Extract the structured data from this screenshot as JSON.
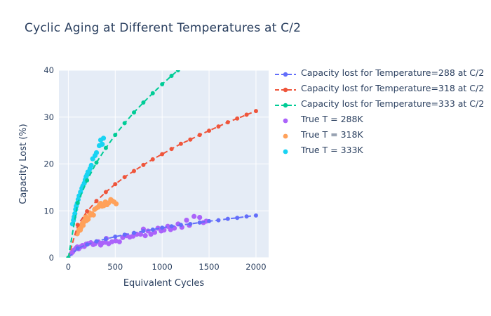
{
  "title": "Cyclic Aging at Different Temperatures at C/2",
  "colors": {
    "title_text": "#2a3f5f",
    "axis_text": "#2a3f5f",
    "plot_bg": "#e5ecf6",
    "grid": "#ffffff",
    "paper_bg": "#ffffff",
    "fit_288": "#636efa",
    "fit_318": "#ef553b",
    "fit_333": "#00cc96",
    "true_288": "#ab63fa",
    "true_318": "#ffa15a",
    "true_333": "#19d3f3"
  },
  "legend": {
    "items": [
      {
        "label": "Capacity lost for Temperature=288 at C/2",
        "type": "line",
        "color": "#636efa"
      },
      {
        "label": "Capacity lost for Temperature=318 at C/2",
        "type": "line",
        "color": "#ef553b"
      },
      {
        "label": "Capacity lost for Temperature=333 at C/2",
        "type": "line",
        "color": "#00cc96"
      },
      {
        "label": "True T = 288K",
        "type": "marker",
        "color": "#ab63fa"
      },
      {
        "label": "True T = 318K",
        "type": "marker",
        "color": "#ffa15a"
      },
      {
        "label": "True T = 333K",
        "type": "marker",
        "color": "#19d3f3"
      }
    ]
  },
  "chart_data": {
    "type": "scatter",
    "title": "Cyclic Aging at Different Temperatures at C/2",
    "xlabel": "Equivalent Cycles",
    "ylabel": "Capacity Lost (%)",
    "xlim": [
      -100,
      2135
    ],
    "ylim": [
      0,
      40
    ],
    "xticks": [
      0,
      500,
      1000,
      1500,
      2000
    ],
    "yticks": [
      0,
      10,
      20,
      30,
      40
    ],
    "grid": true,
    "legend_position": "right-top",
    "series": [
      {
        "name": "Capacity lost for Temperature=288 at C/2",
        "mode": "lines+markers",
        "dashed": true,
        "color": "#636efa",
        "x": [
          0,
          100,
          200,
          300,
          400,
          500,
          600,
          700,
          800,
          900,
          1000,
          1100,
          1200,
          1300,
          1400,
          1500,
          1600,
          1700,
          1800,
          1900,
          2000
        ],
        "y": [
          0,
          2.0,
          2.8,
          3.5,
          4.0,
          4.5,
          4.9,
          5.3,
          5.7,
          6.0,
          6.4,
          6.7,
          7.0,
          7.2,
          7.5,
          7.8,
          8.0,
          8.3,
          8.5,
          8.8,
          9.0
        ]
      },
      {
        "name": "Capacity lost for Temperature=318 at C/2",
        "mode": "lines+markers",
        "dashed": true,
        "color": "#ef553b",
        "x": [
          0,
          100,
          200,
          300,
          400,
          500,
          600,
          700,
          800,
          900,
          1000,
          1100,
          1200,
          1300,
          1400,
          1500,
          1600,
          1700,
          1800,
          1900,
          2000
        ],
        "y": [
          0,
          7.0,
          9.9,
          12.1,
          14.0,
          15.7,
          17.2,
          18.5,
          19.8,
          21.0,
          22.1,
          23.2,
          24.3,
          25.2,
          26.2,
          27.1,
          28.0,
          28.9,
          29.7,
          30.5,
          31.3
        ]
      },
      {
        "name": "Capacity lost for Temperature=333 at C/2",
        "mode": "lines+markers",
        "dashed": true,
        "color": "#00cc96",
        "x": [
          0,
          100,
          200,
          300,
          400,
          500,
          600,
          700,
          800,
          900,
          1000,
          1100,
          1169
        ],
        "y": [
          0,
          11.7,
          16.5,
          20.3,
          23.4,
          26.2,
          28.7,
          31.0,
          33.1,
          35.1,
          37.0,
          38.8,
          40.0
        ]
      },
      {
        "name": "True T = 288K",
        "mode": "markers",
        "color": "#ab63fa",
        "x": [
          30,
          45,
          60,
          80,
          95,
          110,
          130,
          150,
          170,
          190,
          210,
          240,
          265,
          285,
          320,
          345,
          360,
          395,
          405,
          430,
          465,
          505,
          545,
          580,
          620,
          655,
          690,
          730,
          770,
          800,
          820,
          850,
          880,
          920,
          955,
          990,
          1020,
          1060,
          1090,
          1130,
          1170,
          1210,
          1260,
          1290,
          1340,
          1400,
          1440,
          1470
        ],
        "y": [
          0.9,
          1.2,
          1.6,
          2.0,
          2.3,
          1.9,
          2.3,
          2.6,
          2.4,
          2.9,
          3.0,
          3.2,
          2.8,
          3.0,
          3.4,
          2.7,
          3.1,
          3.3,
          4.1,
          3.0,
          3.4,
          3.6,
          3.4,
          4.3,
          4.7,
          4.4,
          4.6,
          5.0,
          5.0,
          6.1,
          4.7,
          5.7,
          5.0,
          5.4,
          6.3,
          5.7,
          5.9,
          6.7,
          6.0,
          6.3,
          7.2,
          6.5,
          8.0,
          6.9,
          8.8,
          8.6,
          7.5,
          7.8
        ]
      },
      {
        "name": "True T = 318K",
        "mode": "markers",
        "color": "#ffa15a",
        "x": [
          95,
          105,
          115,
          122,
          128,
          135,
          142,
          150,
          158,
          165,
          175,
          185,
          192,
          200,
          212,
          225,
          238,
          252,
          268,
          280,
          300,
          318,
          332,
          345,
          360,
          378,
          395,
          412,
          430,
          452,
          470,
          488,
          510
        ],
        "y": [
          5.1,
          5.6,
          6.1,
          6.6,
          5.9,
          6.4,
          7.0,
          7.3,
          6.9,
          7.6,
          8.1,
          8.8,
          7.9,
          8.4,
          8.2,
          9.6,
          9.1,
          9.4,
          9.1,
          10.3,
          10.6,
          10.8,
          11.3,
          11.6,
          11.0,
          11.1,
          11.9,
          11.3,
          11.7,
          12.4,
          12.1,
          11.9,
          11.5
        ]
      },
      {
        "name": "True T = 333K",
        "mode": "markers",
        "color": "#19d3f3",
        "x": [
          45,
          55,
          62,
          70,
          78,
          85,
          95,
          105,
          115,
          130,
          145,
          155,
          170,
          180,
          190,
          200,
          210,
          222,
          232,
          245,
          260,
          285,
          300,
          330,
          345,
          362,
          375
        ],
        "y": [
          7.2,
          8.0,
          8.7,
          9.4,
          10.3,
          11.0,
          11.6,
          12.4,
          13.2,
          14.0,
          14.8,
          15.3,
          15.9,
          16.6,
          17.3,
          17.7,
          18.3,
          18.1,
          19.0,
          19.7,
          21.1,
          21.8,
          22.4,
          23.9,
          25.1,
          24.2,
          25.5
        ]
      }
    ]
  }
}
